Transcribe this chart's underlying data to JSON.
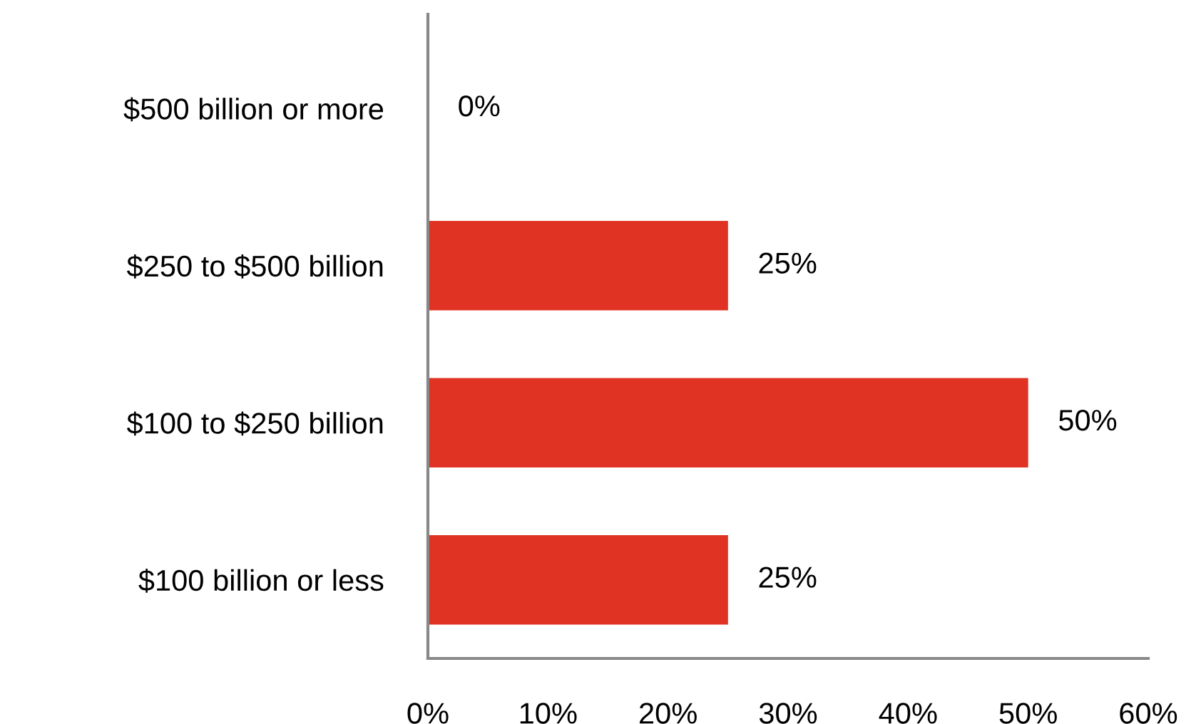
{
  "chart_data": {
    "type": "bar",
    "orientation": "horizontal",
    "categories": [
      "$500 billion or more",
      "$250 to $500 billion",
      "$100 to $250 billion",
      "$100 billion or less"
    ],
    "values": [
      0,
      25,
      50,
      25
    ],
    "value_labels": [
      "0%",
      "25%",
      "50%",
      "25%"
    ],
    "color": "#e03323",
    "xlim": [
      0,
      60
    ],
    "xticks": [
      {
        "value": 0,
        "label": "0%"
      },
      {
        "value": 10,
        "label": "10%"
      },
      {
        "value": 20,
        "label": "20%"
      },
      {
        "value": 30,
        "label": "30%"
      },
      {
        "value": 40,
        "label": "40%"
      },
      {
        "value": 50,
        "label": "50%"
      },
      {
        "value": 60,
        "label": "60%"
      }
    ],
    "grid": false,
    "legend": false
  }
}
